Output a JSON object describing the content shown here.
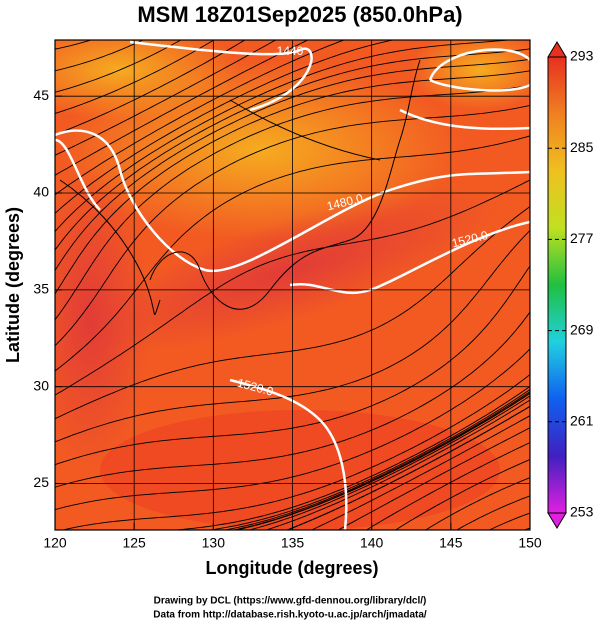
{
  "chart_data": {
    "type": "map",
    "title": "MSM 18Z01Sep2025 (850.0hPa)",
    "x_label": "Longitude (degrees)",
    "y_label": "Latitude  (degrees)",
    "xlim": [
      120,
      150
    ],
    "xticks": [
      120,
      125,
      130,
      135,
      140,
      145,
      150
    ],
    "ylim": [
      22.6,
      47.9
    ],
    "yticks": [
      25,
      30,
      35,
      40,
      45
    ],
    "grid": true,
    "contour_labels": [
      "1440",
      "1480.0",
      "1520.0",
      "1520.0"
    ],
    "colorbar": {
      "lim": [
        253,
        293
      ],
      "ticks": [
        253,
        261,
        269,
        277,
        285,
        293
      ],
      "colors": [
        "#e020e0",
        "#4020c0",
        "#1060f0",
        "#20d0e0",
        "#20c040",
        "#c0e020",
        "#f0c020",
        "#f08020",
        "#e83020"
      ]
    },
    "credits": [
      "Drawing by DCL (https://www.gfd-dennou.org/library/dcl/)",
      "Data from http://database.rish.kyoto-u.ac.jp/arch/jmadata/"
    ]
  }
}
